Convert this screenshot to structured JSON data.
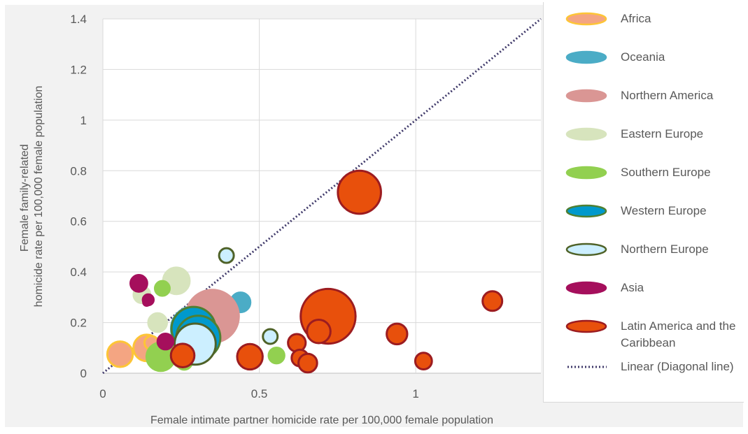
{
  "chart_data": {
    "type": "scatter",
    "title": "",
    "xlabel": "Female intimate partner homicide rate per 100,000 female population",
    "ylabel": [
      "Female family-related",
      "homicide rate per 100,000 female population"
    ],
    "xlim": [
      0,
      1.4
    ],
    "ylim": [
      0,
      1.4
    ],
    "x_ticks": [
      0,
      0.5,
      1
    ],
    "x_tick_labels": [
      "0",
      "0.5",
      "1"
    ],
    "y_ticks": [
      0,
      0.2,
      0.4,
      0.6,
      0.8,
      1,
      1.2,
      1.4
    ],
    "y_tick_labels": [
      "0",
      "0.2",
      "0.4",
      "0.6",
      "0.8",
      "1",
      "1.2",
      "1.4"
    ],
    "grid": true,
    "legend_position": "right",
    "series": [
      {
        "name": "Africa",
        "fill": "#f4a582",
        "stroke": "#fdc536",
        "points": [
          {
            "x": 0.055,
            "y": 0.075,
            "size": 1.3
          },
          {
            "x": 0.14,
            "y": 0.1,
            "size": 1.35
          },
          {
            "x": 0.155,
            "y": 0.12,
            "size": 0.7
          }
        ]
      },
      {
        "name": "Oceania",
        "fill": "#4bacc6",
        "stroke": "#4bacc6",
        "points": [
          {
            "x": 0.44,
            "y": 0.28,
            "size": 1.0
          },
          {
            "x": 0.29,
            "y": 0.175,
            "size": 2.3
          }
        ]
      },
      {
        "name": "Northern America",
        "fill": "#da9694",
        "stroke": "#da9694",
        "points": [
          {
            "x": 0.35,
            "y": 0.225,
            "size": 2.7
          }
        ]
      },
      {
        "name": "Eastern Europe",
        "fill": "#d7e4bd",
        "stroke": "#d7e4bd",
        "points": [
          {
            "x": 0.235,
            "y": 0.365,
            "size": 1.35
          },
          {
            "x": 0.125,
            "y": 0.31,
            "size": 0.85
          },
          {
            "x": 0.175,
            "y": 0.2,
            "size": 0.95
          },
          {
            "x": 0.25,
            "y": 0.055,
            "size": 0.85
          }
        ]
      },
      {
        "name": "Southern Europe",
        "fill": "#92d050",
        "stroke": "#92d050",
        "points": [
          {
            "x": 0.19,
            "y": 0.335,
            "size": 0.75
          },
          {
            "x": 0.185,
            "y": 0.065,
            "size": 1.45
          },
          {
            "x": 0.555,
            "y": 0.07,
            "size": 0.8
          },
          {
            "x": 0.26,
            "y": 0.045,
            "size": 0.8
          },
          {
            "x": 0.215,
            "y": 0.09,
            "size": 0.9
          }
        ]
      },
      {
        "name": "Western Europe",
        "fill": "#0099cc",
        "stroke": "#4f7f32",
        "points": [
          {
            "x": 0.29,
            "y": 0.175,
            "size": 2.25
          },
          {
            "x": 0.305,
            "y": 0.14,
            "size": 2.25
          }
        ]
      },
      {
        "name": "Northern Europe",
        "fill": "#ccefff",
        "stroke": "#4f6228",
        "points": [
          {
            "x": 0.395,
            "y": 0.465,
            "size": 0.75
          },
          {
            "x": 0.535,
            "y": 0.145,
            "size": 0.75
          },
          {
            "x": 0.295,
            "y": 0.115,
            "size": 2.1
          }
        ]
      },
      {
        "name": "Asia",
        "fill": "#a50f5c",
        "stroke": "#a50f5c",
        "points": [
          {
            "x": 0.115,
            "y": 0.355,
            "size": 0.85
          },
          {
            "x": 0.145,
            "y": 0.29,
            "size": 0.55
          },
          {
            "x": 0.14,
            "y": 0.28,
            "size": 0.35
          },
          {
            "x": 0.2,
            "y": 0.125,
            "size": 0.8
          }
        ]
      },
      {
        "name": "Latin America and the Caribbean",
        "fill": "#e8500c",
        "stroke": "#9c1c20",
        "points": [
          {
            "x": 0.82,
            "y": 0.715,
            "size": 2.2
          },
          {
            "x": 0.72,
            "y": 0.225,
            "size": 2.8
          },
          {
            "x": 0.69,
            "y": 0.165,
            "size": 1.2
          },
          {
            "x": 1.245,
            "y": 0.285,
            "size": 1.0
          },
          {
            "x": 0.94,
            "y": 0.155,
            "size": 1.05
          },
          {
            "x": 0.62,
            "y": 0.12,
            "size": 0.9
          },
          {
            "x": 0.63,
            "y": 0.06,
            "size": 0.85
          },
          {
            "x": 0.655,
            "y": 0.04,
            "size": 0.95
          },
          {
            "x": 0.47,
            "y": 0.065,
            "size": 1.3
          },
          {
            "x": 0.255,
            "y": 0.07,
            "size": 1.2
          },
          {
            "x": 1.025,
            "y": 0.048,
            "size": 0.85
          }
        ]
      }
    ],
    "trendline": {
      "name": "Linear (Diagonal line)",
      "color": "#403a6a",
      "x": [
        0,
        1.4
      ],
      "y": [
        0,
        1.4
      ]
    }
  }
}
